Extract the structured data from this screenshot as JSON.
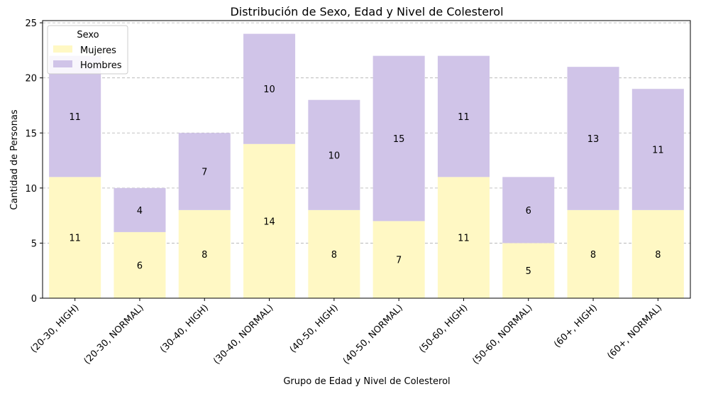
{
  "chart_data": {
    "type": "bar",
    "stacked": true,
    "title": "Distribución de Sexo, Edad y Nivel de Colesterol",
    "xlabel": "Grupo de Edad y Nivel de Colesterol",
    "ylabel": "Cantidad de Personas",
    "ylim": [
      0,
      25.2
    ],
    "yticks": [
      0,
      5,
      10,
      15,
      20,
      25
    ],
    "grid": "horizontal-dashed",
    "categories": [
      "(20-30, HIGH)",
      "(20-30, NORMAL)",
      "(30-40, HIGH)",
      "(30-40, NORMAL)",
      "(40-50, HIGH)",
      "(40-50, NORMAL)",
      "(50-60, HIGH)",
      "(50-60, NORMAL)",
      "(60+, HIGH)",
      "(60+, NORMAL)"
    ],
    "legend": {
      "title": "Sexo",
      "placement": "top-left"
    },
    "series": [
      {
        "name": "Mujeres",
        "color": "#fff8c4",
        "values": [
          11,
          6,
          8,
          14,
          8,
          7,
          11,
          5,
          8,
          8
        ]
      },
      {
        "name": "Hombres",
        "color": "#d0c4e8",
        "values": [
          11,
          4,
          7,
          10,
          10,
          15,
          11,
          6,
          13,
          11
        ]
      }
    ]
  }
}
